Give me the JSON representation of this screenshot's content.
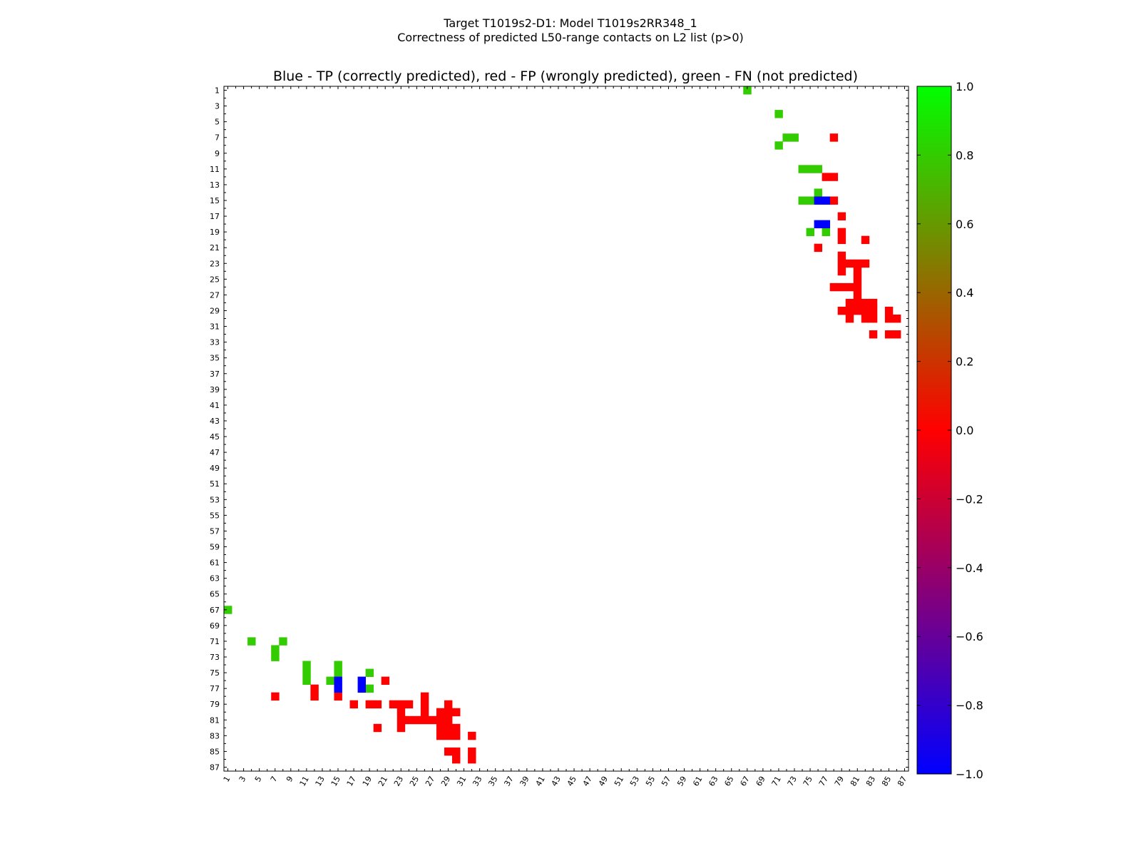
{
  "chart_data": {
    "type": "heatmap",
    "suptitle_line1": "Target T1019s2-D1: Model T1019s2RR348_1",
    "suptitle_line2": "Correctness of predicted L50-range contacts on L2 list (p>0)",
    "title": "Blue - TP (correctly predicted), red - FP (wrongly predicted), green - FN (not predicted)",
    "xlabel": "",
    "ylabel": "",
    "n_residues": 87,
    "x_ticks": [
      "1",
      "3",
      "5",
      "7",
      "9",
      "11",
      "13",
      "15",
      "17",
      "19",
      "21",
      "23",
      "25",
      "27",
      "29",
      "31",
      "33",
      "35",
      "37",
      "39",
      "41",
      "43",
      "45",
      "47",
      "49",
      "51",
      "53",
      "55",
      "57",
      "59",
      "61",
      "63",
      "65",
      "67",
      "69",
      "71",
      "73",
      "75",
      "77",
      "79",
      "81",
      "83",
      "85",
      "87"
    ],
    "y_ticks": [
      "1",
      "3",
      "5",
      "7",
      "9",
      "11",
      "13",
      "15",
      "17",
      "19",
      "21",
      "23",
      "25",
      "27",
      "29",
      "31",
      "33",
      "35",
      "37",
      "39",
      "41",
      "43",
      "45",
      "47",
      "49",
      "51",
      "53",
      "55",
      "57",
      "59",
      "61",
      "63",
      "65",
      "67",
      "69",
      "71",
      "73",
      "75",
      "77",
      "79",
      "81",
      "83",
      "85",
      "87"
    ],
    "colorbar": {
      "range": [
        -1.0,
        1.0
      ],
      "ticks": [
        "1.0",
        "0.8",
        "0.6",
        "0.4",
        "0.2",
        "0.0",
        "−0.2",
        "−0.4",
        "−0.6",
        "−0.8",
        "−1.0"
      ],
      "tick_values": [
        1.0,
        0.8,
        0.6,
        0.4,
        0.2,
        0.0,
        -0.2,
        -0.4,
        -0.6,
        -0.8,
        -1.0
      ],
      "colors": [
        "#0000ff",
        "#ff0000",
        "#00ff00"
      ]
    },
    "colors": {
      "tp": "#0000ff",
      "fp": "#ff0000",
      "fn": "#33cc00",
      "fn_edge": "#66bb00"
    },
    "contacts": {
      "tp": [
        [
          15,
          76
        ],
        [
          15,
          77
        ],
        [
          18,
          76
        ],
        [
          18,
          77
        ]
      ],
      "fn": [
        [
          1,
          67
        ],
        [
          4,
          71
        ],
        [
          7,
          72
        ],
        [
          7,
          73
        ],
        [
          8,
          71
        ],
        [
          11,
          74
        ],
        [
          11,
          75
        ],
        [
          11,
          76
        ],
        [
          14,
          76
        ],
        [
          15,
          74
        ],
        [
          15,
          75
        ],
        [
          19,
          75
        ],
        [
          19,
          77
        ]
      ],
      "fp": [
        [
          7,
          78
        ],
        [
          12,
          77
        ],
        [
          12,
          78
        ],
        [
          15,
          78
        ],
        [
          17,
          79
        ],
        [
          19,
          79
        ],
        [
          20,
          79
        ],
        [
          20,
          82
        ],
        [
          21,
          76
        ],
        [
          22,
          79
        ],
        [
          23,
          79
        ],
        [
          23,
          80
        ],
        [
          23,
          81
        ],
        [
          23,
          82
        ],
        [
          24,
          79
        ],
        [
          24,
          81
        ],
        [
          25,
          81
        ],
        [
          26,
          78
        ],
        [
          26,
          79
        ],
        [
          26,
          80
        ],
        [
          26,
          81
        ],
        [
          27,
          81
        ],
        [
          28,
          80
        ],
        [
          28,
          81
        ],
        [
          28,
          82
        ],
        [
          28,
          83
        ],
        [
          29,
          79
        ],
        [
          29,
          80
        ],
        [
          29,
          81
        ],
        [
          29,
          82
        ],
        [
          29,
          83
        ],
        [
          29,
          85
        ],
        [
          30,
          80
        ],
        [
          30,
          82
        ],
        [
          30,
          83
        ],
        [
          30,
          85
        ],
        [
          30,
          86
        ],
        [
          32,
          83
        ],
        [
          32,
          85
        ],
        [
          32,
          86
        ]
      ]
    }
  }
}
